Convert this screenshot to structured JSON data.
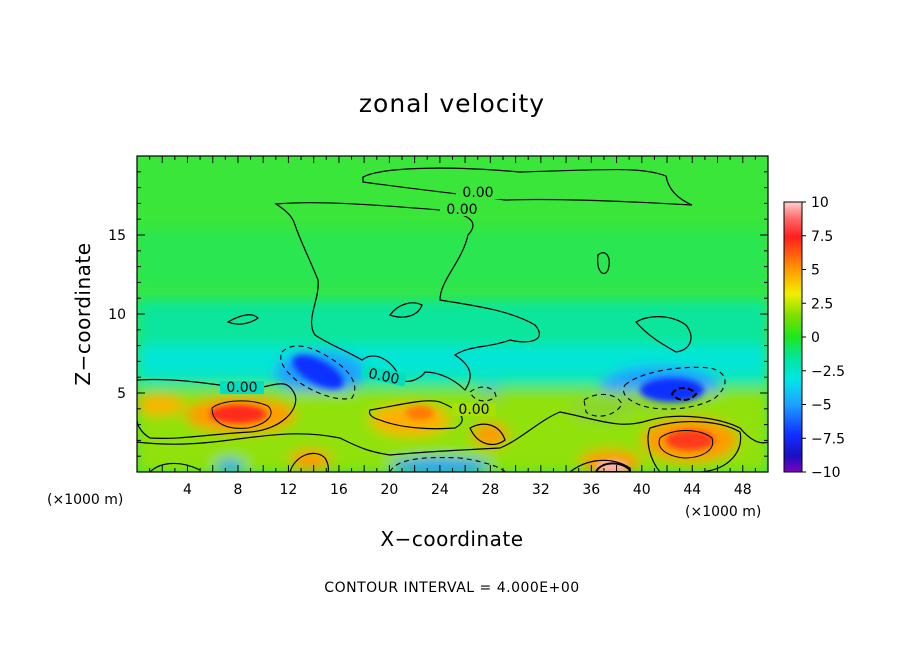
{
  "chart_data": {
    "type": "heatmap",
    "title": "zonal velocity",
    "xlabel": "X−coordinate",
    "ylabel": "Z−coordinate",
    "x_units": "(×1000 m)",
    "x_units_right": "(×1000 m)",
    "xlim": [
      0,
      50
    ],
    "ylim": [
      0,
      20
    ],
    "x_ticks": [
      "4",
      "8",
      "12",
      "16",
      "20",
      "24",
      "28",
      "32",
      "36",
      "40",
      "44",
      "48"
    ],
    "y_ticks": [
      "5",
      "10",
      "15"
    ],
    "colorbar": {
      "range": [
        -10,
        10
      ],
      "tick_labels": [
        "10",
        "7.5",
        "5",
        "2.5",
        "0",
        "−2.5",
        "−5",
        "−7.5",
        "−10"
      ],
      "tick_values": [
        10,
        7.5,
        5,
        2.5,
        0,
        -2.5,
        -5,
        -7.5,
        -10
      ]
    },
    "contour_labels": [
      "0.00",
      "0.00",
      "0.00",
      "0.00",
      "0.00"
    ],
    "contour_note": "CONTOUR INTERVAL = 4.000E+00",
    "features": [
      {
        "x": 14,
        "z": 6.2,
        "value": -8,
        "note": "negative core"
      },
      {
        "x": 43,
        "z": 5.0,
        "value": -9,
        "note": "negative core"
      },
      {
        "x": 8,
        "z": 3.6,
        "value": 7.5,
        "note": "positive core"
      },
      {
        "x": 38,
        "z": 0.3,
        "value": 10,
        "note": "positive core"
      },
      {
        "x": 44,
        "z": 2.2,
        "value": 7,
        "note": "positive core"
      },
      {
        "x": 23,
        "z": 3.5,
        "value": 5,
        "note": "positive core"
      }
    ]
  }
}
